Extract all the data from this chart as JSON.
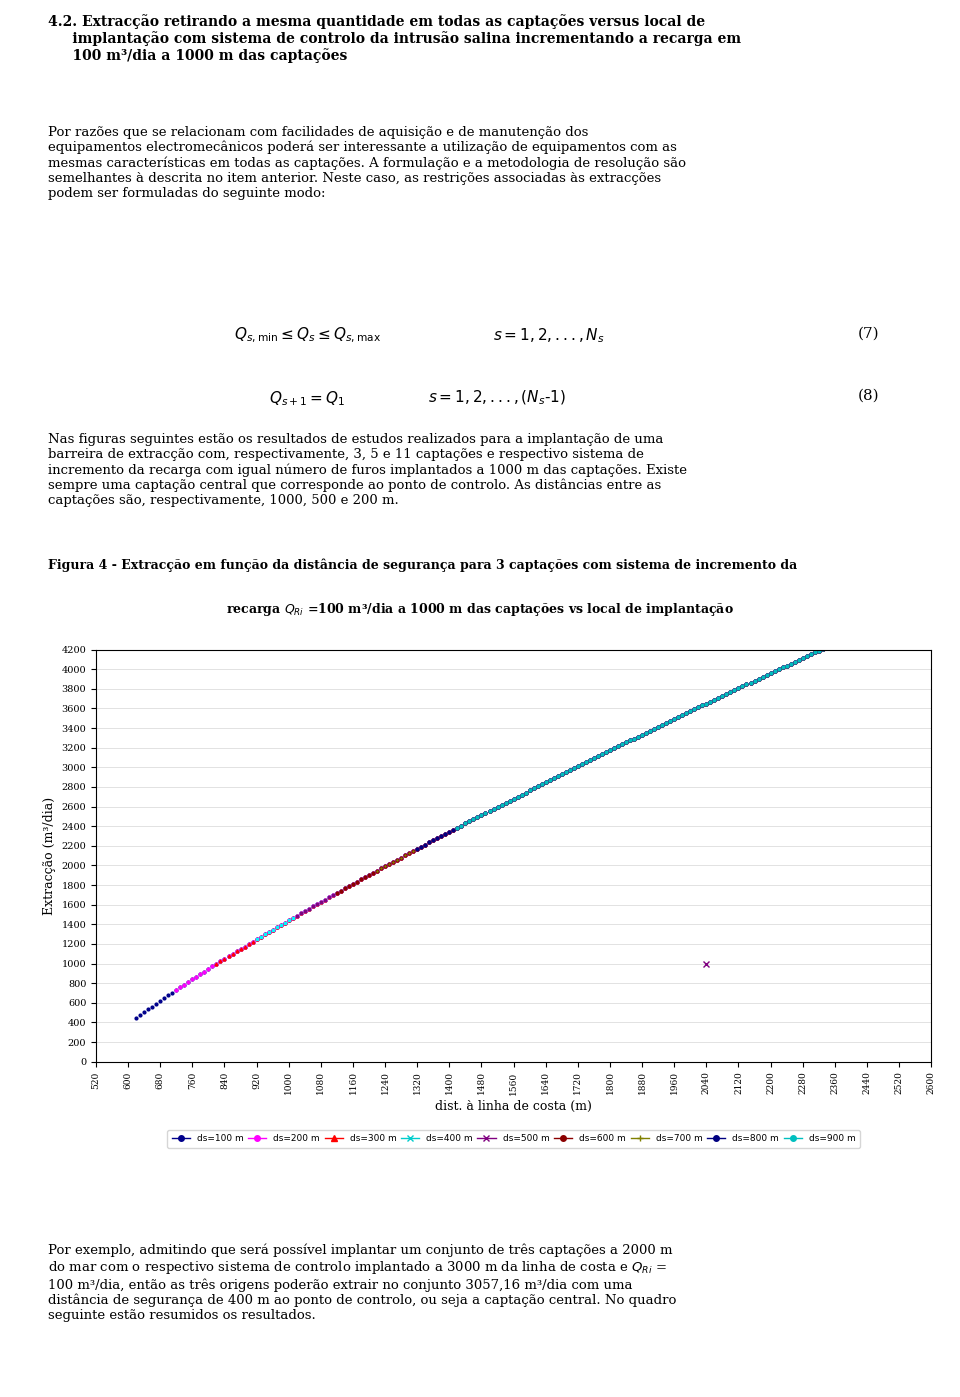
{
  "title_fig": "Figura 4 - Extracção em função da distância de segurança para 3 captações com sistema de incremento da",
  "title_fig2": "recarga $Q_{Ri}$ =100 m³/dia a 1000 m das captações vs local de implantação",
  "xlabel": "dist. à linha de costa (m)",
  "ylabel": "Extracção (m³/dia)",
  "xmin": 520,
  "xmax": 2600,
  "xstep": 80,
  "ymin": 0,
  "ymax": 4200,
  "ystep": 200,
  "series": [
    {
      "label": "ds=100 m",
      "color": "#00008B",
      "marker": "o",
      "ms": 2,
      "start_x": 520,
      "ds": 100
    },
    {
      "label": "ds=200 m",
      "color": "#FF00FF",
      "marker": "o",
      "ms": 2,
      "start_x": 620,
      "ds": 200
    },
    {
      "label": "ds=300 m",
      "color": "#FF0000",
      "marker": "^",
      "ms": 2,
      "start_x": 720,
      "ds": 300
    },
    {
      "label": "ds=400 m",
      "color": "#00FFFF",
      "marker": "x",
      "ms": 3,
      "start_x": 820,
      "ds": 400
    },
    {
      "label": "ds=500 m",
      "color": "#800080",
      "marker": "x",
      "ms": 3,
      "start_x": 920,
      "ds": 500
    },
    {
      "label": "ds=600 m",
      "color": "#8B0000",
      "marker": "o",
      "ms": 2,
      "start_x": 1020,
      "ds": 600
    },
    {
      "label": "ds=700 m",
      "color": "#808000",
      "marker": "+",
      "ms": 3,
      "start_x": 1120,
      "ds": 700
    },
    {
      "label": "ds=800 m",
      "color": "#000080",
      "marker": "o",
      "ms": 2,
      "start_x": 1220,
      "ds": 800
    },
    {
      "label": "ds=900 m",
      "color": "#00BFBF",
      "marker": "o",
      "ms": 2,
      "start_x": 1320,
      "ds": 900
    }
  ],
  "page_texts": [
    "4.2. Extracção retirando a mesma quantidade em todas as captações versus local de",
    "implantação com sistema de controlo da intrusão salina incrementando a recarga em",
    "100 m³/dia a 1000 m das captações"
  ]
}
